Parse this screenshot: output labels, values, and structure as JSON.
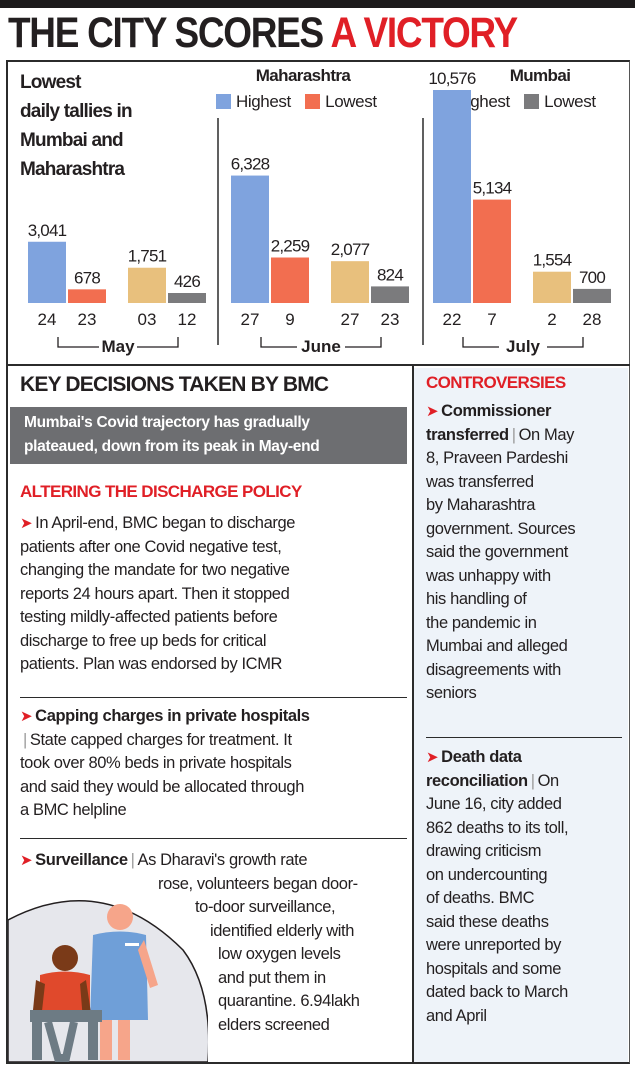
{
  "headline": {
    "dark": "THE CITY SCORES",
    "red": "A VICTORY"
  },
  "chart_intro": [
    "Lowest",
    "daily tallies in",
    "Mumbai and",
    "Maharashtra"
  ],
  "legends": {
    "maharashtra": {
      "title": "Maharashtra",
      "highest": "Highest",
      "lowest": "Lowest"
    },
    "mumbai": {
      "title": "Mumbai",
      "highest": "Highest",
      "lowest": "Lowest"
    }
  },
  "colors": {
    "mh_highest": "#7fa3de",
    "mh_lowest": "#f26e50",
    "mum_highest": "#e8c07d",
    "mum_lowest": "#7b7b7d",
    "accent_red": "#e01f26",
    "banner_grey": "#6d6e71"
  },
  "chart_data": {
    "type": "bar",
    "title": "Lowest daily tallies in Mumbai and Maharashtra",
    "xlabel": "",
    "ylabel": "",
    "series_names": [
      "Maharashtra Highest",
      "Maharashtra Lowest",
      "Mumbai Highest",
      "Mumbai Lowest"
    ],
    "groups": [
      {
        "month": "May",
        "bars": [
          {
            "series": "Maharashtra Highest",
            "day": "24",
            "value": 3041,
            "label": "3,041"
          },
          {
            "series": "Maharashtra Lowest",
            "day": "23",
            "value": 678,
            "label": "678"
          },
          {
            "series": "Mumbai Highest",
            "day": "03",
            "value": 1751,
            "label": "1,751"
          },
          {
            "series": "Mumbai Lowest",
            "day": "12",
            "value": 426,
            "label": "426"
          }
        ]
      },
      {
        "month": "June",
        "bars": [
          {
            "series": "Maharashtra Highest",
            "day": "27",
            "value": 6328,
            "label": "6,328"
          },
          {
            "series": "Maharashtra Lowest",
            "day": "9",
            "value": 2259,
            "label": "2,259"
          },
          {
            "series": "Mumbai Highest",
            "day": "27",
            "value": 2077,
            "label": "2,077"
          },
          {
            "series": "Mumbai Lowest",
            "day": "23",
            "value": 824,
            "label": "824"
          }
        ]
      },
      {
        "month": "July",
        "bars": [
          {
            "series": "Maharashtra Highest",
            "day": "22",
            "value": 10576,
            "label": "10,576"
          },
          {
            "series": "Maharashtra Lowest",
            "day": "7",
            "value": 5134,
            "label": "5,134"
          },
          {
            "series": "Mumbai Highest",
            "day": "2",
            "value": 1554,
            "label": "1,554"
          },
          {
            "series": "Mumbai Lowest",
            "day": "28",
            "value": 700,
            "label": "700"
          }
        ]
      }
    ],
    "ylim": [
      0,
      10576
    ],
    "grid": false,
    "legend": "top"
  },
  "decisions": {
    "title": "KEY DECISIONS TAKEN BY BMC",
    "banner": [
      "Mumbai's Covid trajectory has gradually",
      "plateaued, down from its peak in May-end"
    ],
    "discharge_heading": "ALTERING THE DISCHARGE POLICY",
    "discharge_lines": [
      "In April-end, BMC began to discharge",
      "patients after one Covid negative test,",
      "changing the mandate for two negative",
      "reports 24 hours apart. Then it stopped",
      "testing mildly-affected patients before",
      "discharge to free up beds for critical",
      "patients. Plan was endorsed by ICMR"
    ],
    "capping_heading": "Capping charges in private hospitals",
    "capping_lines": [
      "State capped charges for treatment. It",
      "took over 80% beds in private hospitals",
      "and said they would be allocated through",
      "a BMC helpline"
    ],
    "surveillance_heading": "Surveillance",
    "surveillance_lines": [
      "As Dharavi's growth rate",
      "rose, volunteers began door-",
      "to-door surveillance,",
      "identified elderly with",
      "low oxygen levels",
      "and put them in",
      "quarantine. 6.94lakh",
      "elders screened"
    ]
  },
  "controversies": {
    "title": "CONTROVERSIES",
    "commissioner_heading": [
      "Commissioner",
      "transferred"
    ],
    "commissioner_lines": [
      "On May",
      "8, Praveen Pardeshi",
      "was transferred",
      "by Maharashtra",
      "government. Sources",
      "said the government",
      "was unhappy with",
      "his handling of",
      "the pandemic in",
      "Mumbai and alleged",
      "disagreements with",
      "seniors"
    ],
    "death_heading": [
      "Death data",
      "reconciliation"
    ],
    "death_lines": [
      "On",
      "June 16, city added",
      "862 deaths to its toll,",
      "drawing criticism",
      "on undercounting",
      "of deaths. BMC",
      "said these deaths",
      "were unreported by",
      "hospitals and some",
      "dated back to March",
      "and April"
    ]
  }
}
